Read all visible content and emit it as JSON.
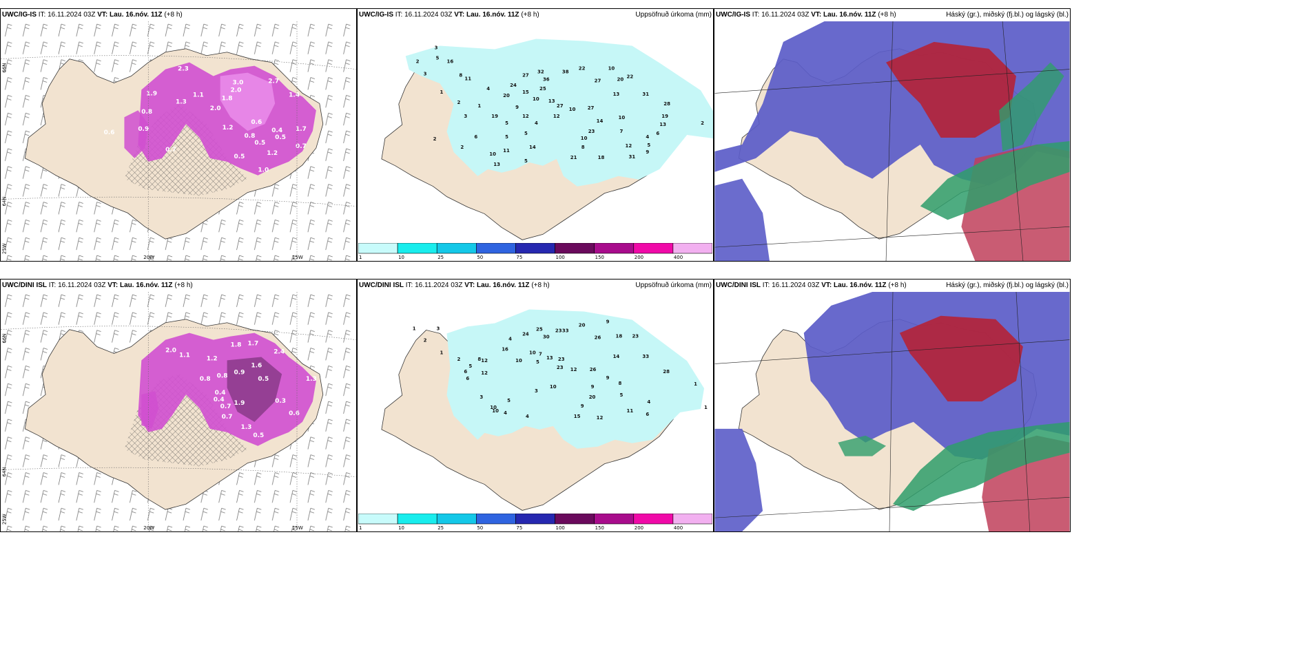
{
  "rows": [
    {
      "model": "UWC/IG-IS",
      "panels": [
        {
          "model": "UWC/IG-IS",
          "it_label": "IT:",
          "it": "16.11.2024 03Z",
          "vt_label": "VT:",
          "vt": "Lau. 16.nóv. 11Z",
          "lead": "(+8 h)",
          "right_title": ""
        },
        {
          "model": "UWC/IG-IS",
          "it_label": "IT:",
          "it": "16.11.2024 03Z",
          "vt_label": "VT:",
          "vt": "Lau. 16.nóv. 11Z",
          "lead": "(+8 h)",
          "right_title": "Uppsöfnuð úrkoma (mm)"
        },
        {
          "model": "UWC/IG-IS",
          "it_label": "IT:",
          "it": "16.11.2024 03Z",
          "vt_label": "VT:",
          "vt": "Lau. 16.nóv. 11Z",
          "lead": "(+8 h)",
          "right_title": "Háský (gr.), miðský (fj.bl.) og lágský (bl.)"
        }
      ],
      "precip_numbers": [
        "3",
        "5",
        "2",
        "3",
        "1",
        "2",
        "16",
        "8",
        "11",
        "3",
        "4",
        "1",
        "19",
        "24",
        "15",
        "6",
        "2",
        "5",
        "5",
        "10",
        "13",
        "11",
        "9",
        "14",
        "5",
        "20",
        "27",
        "32",
        "36",
        "25",
        "10",
        "12",
        "13",
        "27",
        "38",
        "22",
        "27",
        "10",
        "20",
        "22",
        "13",
        "31",
        "10",
        "12",
        "14",
        "23",
        "10",
        "27",
        "28",
        "19",
        "13",
        "7",
        "6",
        "4",
        "5",
        "12",
        "31",
        "9",
        "21",
        "2",
        "18",
        "8",
        "5",
        "4",
        "10",
        "2"
      ],
      "snow_numbers": [
        "2.3",
        "3.0",
        "2.0",
        "2.7",
        "1.9",
        "1.8",
        "1.3",
        "0.8",
        "1.2",
        "0.6",
        "0.9",
        "0.5",
        "1.7",
        "1.0",
        "0.7",
        "0.4",
        "0.5",
        "1.4",
        "2.0",
        "0.5",
        "1.1",
        "0.8",
        "0.6",
        "1.2",
        "0.7"
      ]
    },
    {
      "model": "UWC/DINI ISL",
      "panels": [
        {
          "model": "UWC/DINI ISL",
          "it_label": "IT:",
          "it": "16.11.2024 03Z",
          "vt_label": "VT:",
          "vt": "Lau. 16.nóv. 11Z",
          "lead": "(+8 h)",
          "right_title": ""
        },
        {
          "model": "UWC/DINI ISL",
          "it_label": "IT:",
          "it": "16.11.2024 03Z",
          "vt_label": "VT:",
          "vt": "Lau. 16.nóv. 11Z",
          "lead": "(+8 h)",
          "right_title": "Uppsöfnuð úrkoma (mm)"
        },
        {
          "model": "UWC/DINI ISL",
          "it_label": "IT:",
          "it": "16.11.2024 03Z",
          "vt_label": "VT:",
          "vt": "Lau. 16.nóv. 11Z",
          "lead": "(+8 h)",
          "right_title": "Háský (gr.), miðský (fj.bl.) og lágský (bl.)"
        }
      ],
      "precip_numbers": [
        "1",
        "2",
        "3",
        "1",
        "2",
        "6",
        "5",
        "8",
        "10",
        "12",
        "16",
        "4",
        "24",
        "25",
        "30",
        "23",
        "33",
        "20",
        "9",
        "26",
        "18",
        "23",
        "7",
        "13",
        "5",
        "10",
        "14",
        "12",
        "23",
        "12",
        "26",
        "33",
        "28",
        "6",
        "3",
        "5",
        "3",
        "10",
        "9",
        "20",
        "9",
        "8",
        "5",
        "4",
        "1",
        "1",
        "15",
        "12",
        "11",
        "9",
        "6",
        "4",
        "10",
        "4",
        "10",
        "23"
      ],
      "snow_numbers": [
        "2.0",
        "1.7",
        "2.4",
        "1.2",
        "0.9",
        "0.8",
        "1.6",
        "0.5",
        "0.4",
        "0.3",
        "0.7",
        "1.9",
        "1.3",
        "0.6",
        "1.1",
        "0.8",
        "0.5",
        "0.4",
        "1.3",
        "1.8",
        "0.7"
      ]
    }
  ],
  "axis_labels": {
    "lat_66": "66N",
    "lat_64": "64N",
    "lon_25": "25W",
    "lon_20": "20W",
    "lon_15": "15W"
  },
  "legend": {
    "ticks": [
      "1",
      "10",
      "25",
      "50",
      "75",
      "100",
      "150",
      "200",
      "400"
    ],
    "colors": [
      "#c8fbfb",
      "#19eded",
      "#14c8e8",
      "#2f64e0",
      "#2628b0",
      "#6a0a5c",
      "#a80c8c",
      "#f00aa8",
      "#f2b0f0"
    ]
  },
  "colors": {
    "land": "#f2e3d0",
    "precip": "#c6f7f7",
    "snow": "#d04fd0",
    "cloud_high": "#5b5cc8",
    "cloud_mid": "#b3243a",
    "cloud_low": "#2f9e6b"
  }
}
